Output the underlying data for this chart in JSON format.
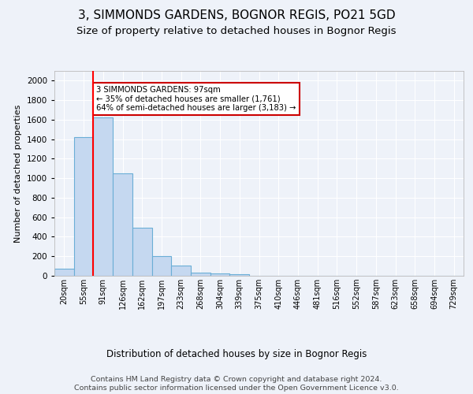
{
  "title": "3, SIMMONDS GARDENS, BOGNOR REGIS, PO21 5GD",
  "subtitle": "Size of property relative to detached houses in Bognor Regis",
  "xlabel": "Distribution of detached houses by size in Bognor Regis",
  "ylabel": "Number of detached properties",
  "bin_labels": [
    "20sqm",
    "55sqm",
    "91sqm",
    "126sqm",
    "162sqm",
    "197sqm",
    "233sqm",
    "268sqm",
    "304sqm",
    "339sqm",
    "375sqm",
    "410sqm",
    "446sqm",
    "481sqm",
    "516sqm",
    "552sqm",
    "587sqm",
    "623sqm",
    "658sqm",
    "694sqm",
    "729sqm"
  ],
  "bar_values": [
    75,
    1420,
    1620,
    1050,
    490,
    200,
    105,
    35,
    25,
    15,
    0,
    0,
    0,
    0,
    0,
    0,
    0,
    0,
    0,
    0,
    0
  ],
  "bar_color": "#c5d8f0",
  "bar_edge_color": "#6aaed6",
  "red_line_bin_index": 2,
  "annotation_text": "3 SIMMONDS GARDENS: 97sqm\n← 35% of detached houses are smaller (1,761)\n64% of semi-detached houses are larger (3,183) →",
  "annotation_box_color": "#ffffff",
  "annotation_box_edge": "#cc0000",
  "ylim": [
    0,
    2100
  ],
  "yticks": [
    0,
    200,
    400,
    600,
    800,
    1000,
    1200,
    1400,
    1600,
    1800,
    2000
  ],
  "footer_text": "Contains HM Land Registry data © Crown copyright and database right 2024.\nContains public sector information licensed under the Open Government Licence v3.0.",
  "background_color": "#eef2f9",
  "grid_color": "#ffffff",
  "title_fontsize": 11,
  "subtitle_fontsize": 9.5
}
